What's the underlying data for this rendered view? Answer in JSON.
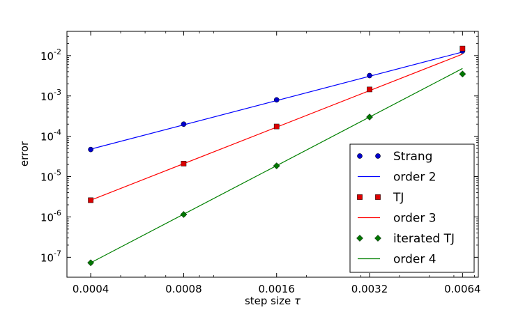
{
  "chart_data": {
    "type": "line",
    "title": "",
    "xlabel": "step size",
    "xlabel_symbol": "τ",
    "ylabel": "error",
    "x_scale": "log",
    "y_scale": "log",
    "xlim": [
      0.000335,
      0.0072
    ],
    "ylim": [
      3.2e-08,
      0.04
    ],
    "x_ticks": [
      0.0004,
      0.0008,
      0.0016,
      0.0032,
      0.0064
    ],
    "x_tick_labels": [
      "0.0004",
      "0.0008",
      "0.0016",
      "0.0032",
      "0.0064"
    ],
    "y_tick_labels": [
      {
        "base": "10",
        "exp": "-7",
        "value": 1e-07
      },
      {
        "base": "10",
        "exp": "-6",
        "value": 1e-06
      },
      {
        "base": "10",
        "exp": "-5",
        "value": 1e-05
      },
      {
        "base": "10",
        "exp": "-4",
        "value": 0.0001
      },
      {
        "base": "10",
        "exp": "-3",
        "value": 0.001
      },
      {
        "base": "10",
        "exp": "-2",
        "value": 0.01
      }
    ],
    "grid": false,
    "legend_position": "lower-right",
    "series": [
      {
        "name": "Strang",
        "kind": "markers",
        "marker": "circle",
        "color": "#0000cc",
        "x": [
          0.0004,
          0.0008,
          0.0016,
          0.0032,
          0.0064
        ],
        "y": [
          4.7e-05,
          0.0002,
          0.0008,
          0.0032,
          0.013
        ]
      },
      {
        "name": "order 2",
        "kind": "line",
        "color": "#0000ff",
        "x": [
          0.0004,
          0.0064
        ],
        "y": [
          4.8e-05,
          0.0123
        ]
      },
      {
        "name": " TJ",
        "kind": "markers",
        "marker": "square",
        "color": "#dd0000",
        "x": [
          0.0004,
          0.0008,
          0.0016,
          0.0032,
          0.0064
        ],
        "y": [
          2.6e-06,
          2.1e-05,
          0.000175,
          0.00145,
          0.015
        ]
      },
      {
        "name": "order 3",
        "kind": "line",
        "color": "#ff0000",
        "x": [
          0.0004,
          0.0064
        ],
        "y": [
          2.6e-06,
          0.0109
        ]
      },
      {
        "name": "iterated TJ",
        "kind": "markers",
        "marker": "diamond",
        "color": "#007700",
        "x": [
          0.0004,
          0.0008,
          0.0016,
          0.0032,
          0.0064
        ],
        "y": [
          7.3e-08,
          1.15e-06,
          1.85e-05,
          0.0003,
          0.0035
        ]
      },
      {
        "name": "order 4",
        "kind": "line",
        "color": "#008000",
        "x": [
          0.0004,
          0.0064
        ],
        "y": [
          7.3e-08,
          0.0048
        ]
      }
    ]
  }
}
